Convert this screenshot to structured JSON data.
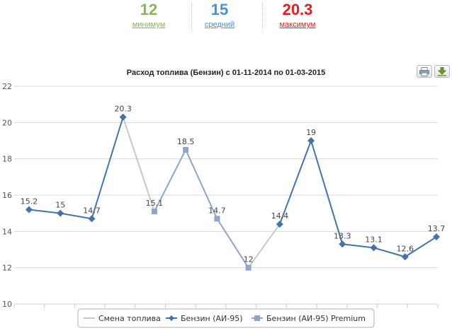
{
  "stats": {
    "min": {
      "value": "12",
      "label": "минимум",
      "color": "#8db35a"
    },
    "avg": {
      "value": "15",
      "label": "средний",
      "color": "#4d8fd6"
    },
    "max": {
      "value": "20.3",
      "label": "максимум",
      "color": "#e51d1d"
    }
  },
  "toolbar": {
    "print_icon": "printer-icon",
    "export_icon": "download-icon"
  },
  "chart_data": {
    "type": "line",
    "title": "Расход топлива (Бензин) с 01-11-2014 по 01-03-2015",
    "xlabel": "",
    "ylabel": "",
    "ylim": [
      10,
      22
    ],
    "yticks": [
      10,
      12,
      14,
      16,
      18,
      20,
      22
    ],
    "x": [
      1,
      2,
      3,
      4,
      5,
      6,
      7,
      8,
      9,
      10,
      11,
      12,
      13,
      14
    ],
    "points": [
      {
        "x": 1,
        "value": 15.2,
        "label": "15.2",
        "fuel": "ai95"
      },
      {
        "x": 2,
        "value": 15,
        "label": "15",
        "fuel": "ai95"
      },
      {
        "x": 3,
        "value": 14.7,
        "label": "14.7",
        "fuel": "ai95"
      },
      {
        "x": 4,
        "value": 20.3,
        "label": "20.3",
        "fuel": "ai95"
      },
      {
        "x": 5,
        "value": 15.1,
        "label": "15.1",
        "fuel": "premium"
      },
      {
        "x": 6,
        "value": 18.5,
        "label": "18.5",
        "fuel": "premium"
      },
      {
        "x": 7,
        "value": 14.7,
        "label": "14.7",
        "fuel": "premium"
      },
      {
        "x": 8,
        "value": 12,
        "label": "12",
        "fuel": "premium"
      },
      {
        "x": 9,
        "value": 14.4,
        "label": "14.4",
        "fuel": "ai95"
      },
      {
        "x": 10,
        "value": 19,
        "label": "19",
        "fuel": "ai95"
      },
      {
        "x": 11,
        "value": 13.3,
        "label": "13.3",
        "fuel": "ai95"
      },
      {
        "x": 12,
        "value": 13.1,
        "label": "13.1",
        "fuel": "ai95"
      },
      {
        "x": 13,
        "value": 12.6,
        "label": "12.6",
        "fuel": "ai95"
      },
      {
        "x": 14,
        "value": 13.7,
        "label": "13.7",
        "fuel": "ai95"
      }
    ],
    "series": [
      {
        "key": "change",
        "name": "Смена топлива",
        "color": "#c8c8c8",
        "marker": "none"
      },
      {
        "key": "ai95",
        "name": "Бензин (АИ-95)",
        "color": "#4572a7",
        "marker": "diamond"
      },
      {
        "key": "premium",
        "name": "Бензин (АИ-95) Premium",
        "color": "#8ea5c8",
        "marker": "square"
      }
    ],
    "grid": true,
    "legend": "bottom-center"
  }
}
